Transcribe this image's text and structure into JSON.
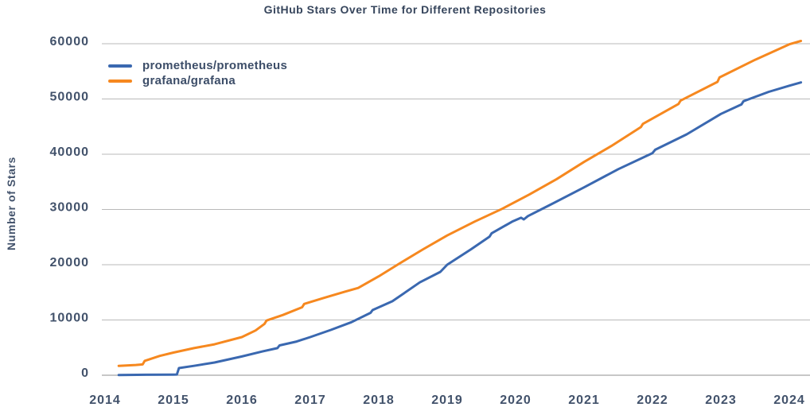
{
  "chart_data": {
    "type": "line",
    "title": "GitHub Stars Over Time for Different Repositories",
    "xlabel": "",
    "ylabel": "Number of Stars",
    "x_ticks": [
      2014,
      2015,
      2016,
      2017,
      2018,
      2019,
      2020,
      2021,
      2022,
      2023,
      2024
    ],
    "y_ticks": [
      0,
      10000,
      20000,
      30000,
      40000,
      50000,
      60000
    ],
    "xlim": [
      2013.95,
      2024.3
    ],
    "ylim": [
      0,
      60000
    ],
    "grid": "horizontal",
    "legend_position": "upper left",
    "series": [
      {
        "name": "prometheus/prometheus",
        "color": "#3a68b0",
        "points": [
          [
            2014.2,
            50
          ],
          [
            2014.6,
            80
          ],
          [
            2015.0,
            120
          ],
          [
            2015.05,
            130
          ],
          [
            2015.08,
            1300
          ],
          [
            2015.3,
            1700
          ],
          [
            2015.6,
            2300
          ],
          [
            2016.0,
            3400
          ],
          [
            2016.3,
            4300
          ],
          [
            2016.52,
            4900
          ],
          [
            2016.55,
            5400
          ],
          [
            2016.8,
            6100
          ],
          [
            2017.0,
            6900
          ],
          [
            2017.3,
            8200
          ],
          [
            2017.6,
            9600
          ],
          [
            2017.88,
            11300
          ],
          [
            2017.91,
            11800
          ],
          [
            2018.2,
            13400
          ],
          [
            2018.6,
            16800
          ],
          [
            2018.9,
            18700
          ],
          [
            2019.0,
            20000
          ],
          [
            2019.35,
            22800
          ],
          [
            2019.62,
            25100
          ],
          [
            2019.65,
            25700
          ],
          [
            2019.95,
            27800
          ],
          [
            2020.08,
            28500
          ],
          [
            2020.12,
            28200
          ],
          [
            2020.18,
            28800
          ],
          [
            2020.5,
            30800
          ],
          [
            2021.0,
            34000
          ],
          [
            2021.5,
            37300
          ],
          [
            2022.0,
            40200
          ],
          [
            2022.04,
            40800
          ],
          [
            2022.5,
            43600
          ],
          [
            2023.0,
            47300
          ],
          [
            2023.3,
            49000
          ],
          [
            2023.33,
            49600
          ],
          [
            2023.7,
            51300
          ],
          [
            2024.0,
            52400
          ],
          [
            2024.17,
            53000
          ]
        ]
      },
      {
        "name": "grafana/grafana",
        "color": "#f6881f",
        "points": [
          [
            2014.2,
            1700
          ],
          [
            2014.45,
            1850
          ],
          [
            2014.55,
            1950
          ],
          [
            2014.58,
            2600
          ],
          [
            2014.8,
            3500
          ],
          [
            2015.0,
            4100
          ],
          [
            2015.3,
            4900
          ],
          [
            2015.6,
            5600
          ],
          [
            2016.0,
            6900
          ],
          [
            2016.2,
            8100
          ],
          [
            2016.33,
            9300
          ],
          [
            2016.36,
            9900
          ],
          [
            2016.6,
            10900
          ],
          [
            2016.88,
            12300
          ],
          [
            2016.91,
            12900
          ],
          [
            2017.2,
            14000
          ],
          [
            2017.5,
            15100
          ],
          [
            2017.7,
            15800
          ],
          [
            2018.0,
            17900
          ],
          [
            2018.3,
            20200
          ],
          [
            2018.65,
            22800
          ],
          [
            2019.0,
            25300
          ],
          [
            2019.4,
            27800
          ],
          [
            2019.8,
            30100
          ],
          [
            2020.2,
            32700
          ],
          [
            2020.6,
            35500
          ],
          [
            2021.0,
            38600
          ],
          [
            2021.4,
            41500
          ],
          [
            2021.83,
            44900
          ],
          [
            2021.86,
            45500
          ],
          [
            2022.38,
            49100
          ],
          [
            2022.41,
            49700
          ],
          [
            2022.95,
            53100
          ],
          [
            2022.98,
            53900
          ],
          [
            2023.5,
            57100
          ],
          [
            2024.0,
            59900
          ],
          [
            2024.17,
            60500
          ]
        ]
      }
    ]
  },
  "colors": {
    "grid_line": "#b9b9b9",
    "axis_line": "#8f8f8f",
    "tick_text": "#42526b",
    "title_text": "#36455c"
  }
}
